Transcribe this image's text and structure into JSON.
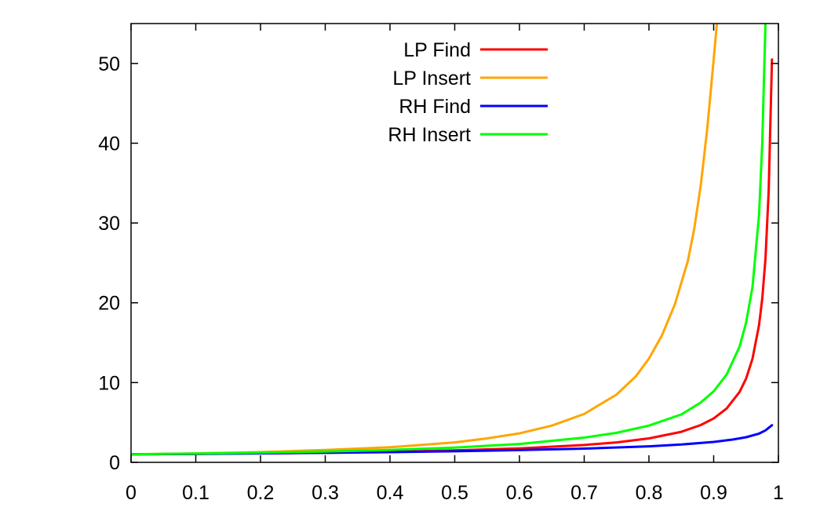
{
  "chart_data": {
    "type": "line",
    "title": "",
    "xlabel": "",
    "ylabel": "",
    "xlim": [
      0,
      1
    ],
    "ylim": [
      0,
      55
    ],
    "grid": false,
    "legend_position": "top-center",
    "x_ticks": [
      {
        "value": 0,
        "label": "0"
      },
      {
        "value": 0.1,
        "label": "0.1"
      },
      {
        "value": 0.2,
        "label": "0.2"
      },
      {
        "value": 0.3,
        "label": "0.3"
      },
      {
        "value": 0.4,
        "label": "0.4"
      },
      {
        "value": 0.5,
        "label": "0.5"
      },
      {
        "value": 0.6,
        "label": "0.6"
      },
      {
        "value": 0.7,
        "label": "0.7"
      },
      {
        "value": 0.8,
        "label": "0.8"
      },
      {
        "value": 0.9,
        "label": "0.9"
      },
      {
        "value": 1,
        "label": "1"
      }
    ],
    "y_ticks": [
      {
        "value": 0,
        "label": "0"
      },
      {
        "value": 10,
        "label": "10"
      },
      {
        "value": 20,
        "label": "20"
      },
      {
        "value": 30,
        "label": "30"
      },
      {
        "value": 40,
        "label": "40"
      },
      {
        "value": 50,
        "label": "50"
      }
    ],
    "series": [
      {
        "name": "LP Find",
        "color": "#ff0000",
        "points": [
          [
            0,
            1.0
          ],
          [
            0.1,
            1.06
          ],
          [
            0.2,
            1.13
          ],
          [
            0.3,
            1.21
          ],
          [
            0.4,
            1.33
          ],
          [
            0.5,
            1.5
          ],
          [
            0.6,
            1.75
          ],
          [
            0.7,
            2.17
          ],
          [
            0.75,
            2.5
          ],
          [
            0.8,
            3.0
          ],
          [
            0.85,
            3.83
          ],
          [
            0.88,
            4.67
          ],
          [
            0.9,
            5.5
          ],
          [
            0.92,
            6.75
          ],
          [
            0.94,
            8.83
          ],
          [
            0.95,
            10.5
          ],
          [
            0.96,
            13.0
          ],
          [
            0.97,
            17.2
          ],
          [
            0.975,
            20.5
          ],
          [
            0.98,
            25.5
          ],
          [
            0.985,
            34.0
          ],
          [
            0.99,
            50.5
          ]
        ]
      },
      {
        "name": "LP Insert",
        "color": "#ffa500",
        "points": [
          [
            0,
            1.0
          ],
          [
            0.1,
            1.12
          ],
          [
            0.2,
            1.28
          ],
          [
            0.3,
            1.54
          ],
          [
            0.4,
            1.89
          ],
          [
            0.5,
            2.5
          ],
          [
            0.55,
            3.0
          ],
          [
            0.6,
            3.63
          ],
          [
            0.65,
            4.6
          ],
          [
            0.7,
            6.06
          ],
          [
            0.75,
            8.5
          ],
          [
            0.78,
            10.8
          ],
          [
            0.8,
            13.0
          ],
          [
            0.82,
            15.9
          ],
          [
            0.84,
            19.8
          ],
          [
            0.86,
            25.2
          ],
          [
            0.87,
            29.3
          ],
          [
            0.88,
            34.7
          ],
          [
            0.89,
            41.8
          ],
          [
            0.9,
            50.5
          ],
          [
            0.905,
            55
          ]
        ]
      },
      {
        "name": "RH Find",
        "color": "#0000ff",
        "points": [
          [
            0,
            1.0
          ],
          [
            0.1,
            1.05
          ],
          [
            0.2,
            1.12
          ],
          [
            0.3,
            1.19
          ],
          [
            0.4,
            1.28
          ],
          [
            0.5,
            1.39
          ],
          [
            0.6,
            1.53
          ],
          [
            0.7,
            1.72
          ],
          [
            0.8,
            2.01
          ],
          [
            0.85,
            2.23
          ],
          [
            0.9,
            2.56
          ],
          [
            0.93,
            2.86
          ],
          [
            0.95,
            3.15
          ],
          [
            0.97,
            3.6
          ],
          [
            0.98,
            4.0
          ],
          [
            0.99,
            4.65
          ]
        ]
      },
      {
        "name": "RH Insert",
        "color": "#00ff00",
        "points": [
          [
            0,
            1.0
          ],
          [
            0.1,
            1.1
          ],
          [
            0.2,
            1.2
          ],
          [
            0.3,
            1.35
          ],
          [
            0.4,
            1.55
          ],
          [
            0.5,
            1.85
          ],
          [
            0.6,
            2.3
          ],
          [
            0.7,
            3.1
          ],
          [
            0.75,
            3.7
          ],
          [
            0.8,
            4.6
          ],
          [
            0.85,
            6.0
          ],
          [
            0.88,
            7.5
          ],
          [
            0.9,
            8.9
          ],
          [
            0.92,
            11.0
          ],
          [
            0.94,
            14.5
          ],
          [
            0.95,
            17.5
          ],
          [
            0.96,
            22.0
          ],
          [
            0.97,
            31.0
          ],
          [
            0.975,
            40.0
          ],
          [
            0.98,
            55
          ]
        ]
      }
    ]
  }
}
